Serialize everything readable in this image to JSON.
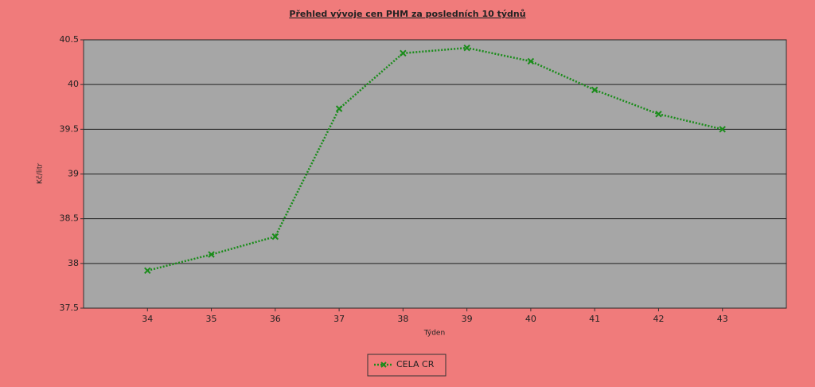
{
  "chart_data": {
    "type": "line",
    "title": "Přehled vývoje cen PHM za posledních 10 týdnů",
    "x_label": "Týden",
    "y_label": "Kč/litr",
    "x": [
      34,
      35,
      36,
      37,
      38,
      39,
      40,
      41,
      42,
      43
    ],
    "xlim": [
      33,
      44
    ],
    "xticks": [
      34,
      35,
      36,
      37,
      38,
      39,
      40,
      41,
      42,
      43
    ],
    "ylim": [
      37.5,
      40.5
    ],
    "yticks": [
      37.5,
      38,
      38.5,
      39,
      39.5,
      40,
      40.5
    ],
    "grid": true,
    "legend": "bottom",
    "series": [
      {
        "name": "CELA CR",
        "color": "#1a8c1a",
        "values": [
          37.92,
          38.1,
          38.3,
          39.73,
          40.35,
          40.41,
          40.26,
          39.94,
          39.67,
          39.5
        ]
      }
    ]
  }
}
